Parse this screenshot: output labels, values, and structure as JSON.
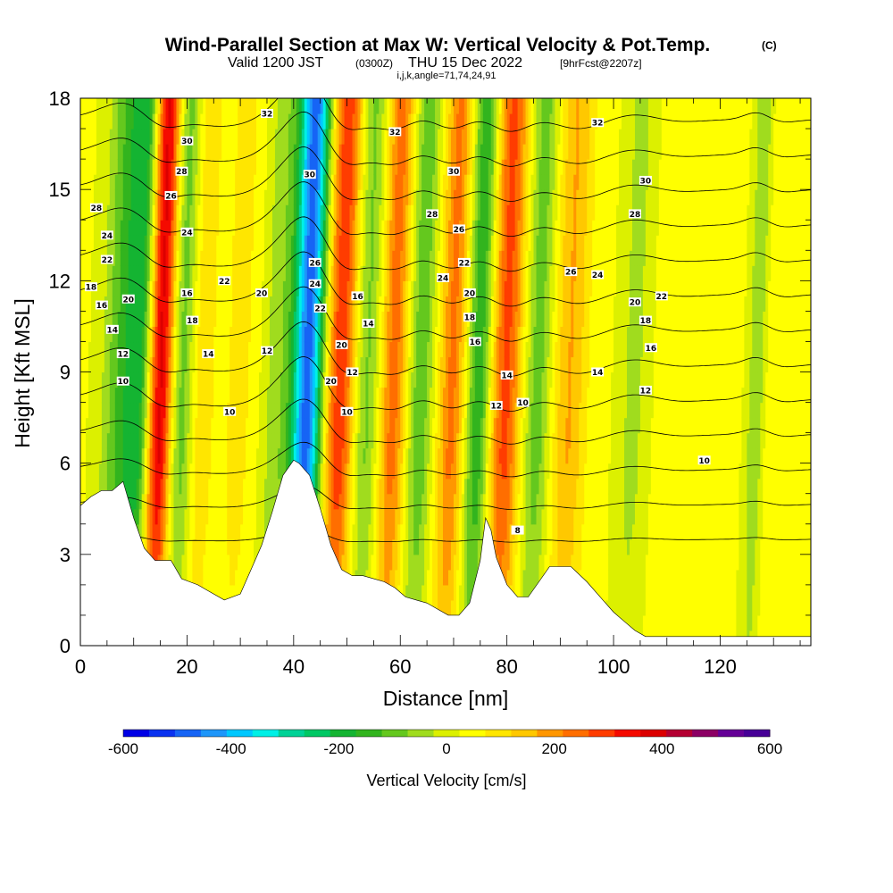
{
  "title": "Wind-Parallel Section at Max W: Vertical Velocity & Pot.Temp.",
  "title_mark": "(C)",
  "subtitle": {
    "valid": "Valid 1200 JST",
    "utc": "(0300Z)",
    "date": "THU 15 Dec 2022",
    "fcst": "[9hrFcst@2207z]"
  },
  "indices": "i,j,k,angle=71,74,24,91",
  "chart_data": {
    "type": "heatmap",
    "xlabel": "Distance [nm]",
    "ylabel": "Height [Kft MSL]",
    "xlim": [
      0,
      137
    ],
    "ylim": [
      0,
      18
    ],
    "xticks": [
      0,
      20,
      40,
      60,
      80,
      100,
      120
    ],
    "yticks": [
      0,
      3,
      6,
      9,
      12,
      15,
      18
    ],
    "grid": false,
    "colorbar": {
      "title": "Vertical Velocity [cm/s]",
      "min": -600,
      "max": 600,
      "ticks": [
        -600,
        -400,
        -200,
        0,
        200,
        400,
        600
      ],
      "colors": [
        "#0000e6",
        "#0a32f0",
        "#1664f5",
        "#1e96fa",
        "#00c8ff",
        "#00f0e6",
        "#00d296",
        "#00c864",
        "#14b432",
        "#32b41e",
        "#64c81e",
        "#a0dc1e",
        "#dcf000",
        "#ffff00",
        "#ffe600",
        "#ffc800",
        "#ff9600",
        "#ff6e00",
        "#ff3c00",
        "#f50a00",
        "#dc0000",
        "#b40032",
        "#8c0064",
        "#640096",
        "#460096"
      ]
    },
    "velocity_bands": [
      {
        "x": 8,
        "w": -150,
        "width": 3.5
      },
      {
        "x": 12,
        "w": -250,
        "width": 2.8
      },
      {
        "x": 15,
        "w": 420,
        "width": 2.8
      },
      {
        "x": 19,
        "w": -160,
        "width": 2.5
      },
      {
        "x": 23,
        "w": 80,
        "width": 2.5
      },
      {
        "x": 30,
        "w": 60,
        "width": 3.0
      },
      {
        "x": 37,
        "w": -80,
        "width": 2.5
      },
      {
        "x": 42,
        "w": -380,
        "width": 2.6
      },
      {
        "x": 44,
        "w": -220,
        "width": 2.2
      },
      {
        "x": 49,
        "w": 270,
        "width": 2.8
      },
      {
        "x": 54,
        "w": -120,
        "width": 2.5
      },
      {
        "x": 59,
        "w": 210,
        "width": 2.6
      },
      {
        "x": 64,
        "w": -140,
        "width": 2.5
      },
      {
        "x": 70,
        "w": 200,
        "width": 2.6
      },
      {
        "x": 75,
        "w": -200,
        "width": 2.4
      },
      {
        "x": 80,
        "w": 250,
        "width": 3.0
      },
      {
        "x": 86,
        "w": -130,
        "width": 2.6
      },
      {
        "x": 92,
        "w": 140,
        "width": 3.2
      },
      {
        "x": 104,
        "w": -70,
        "width": 2.6
      },
      {
        "x": 112,
        "w": 30,
        "width": 3.0
      },
      {
        "x": 127,
        "w": -100,
        "width": 1.5
      },
      {
        "x": 131,
        "w": 40,
        "width": 2.0
      }
    ],
    "isentrope_levels": [
      8,
      10,
      12,
      14,
      16,
      18,
      20,
      22,
      24,
      26,
      28,
      30,
      32
    ],
    "isentrope_labels": [
      {
        "text": "32",
        "x": 35,
        "y": 17.5
      },
      {
        "text": "32",
        "x": 59,
        "y": 16.9
      },
      {
        "text": "32",
        "x": 97,
        "y": 17.2
      },
      {
        "text": "30",
        "x": 20,
        "y": 16.6
      },
      {
        "text": "30",
        "x": 43,
        "y": 15.5
      },
      {
        "text": "30",
        "x": 70,
        "y": 15.6
      },
      {
        "text": "30",
        "x": 106,
        "y": 15.3
      },
      {
        "text": "28",
        "x": 19,
        "y": 15.6
      },
      {
        "text": "28",
        "x": 3,
        "y": 14.4
      },
      {
        "text": "28",
        "x": 66,
        "y": 14.2
      },
      {
        "text": "28",
        "x": 104,
        "y": 14.2
      },
      {
        "text": "26",
        "x": 17,
        "y": 14.8
      },
      {
        "text": "26",
        "x": 44,
        "y": 12.6
      },
      {
        "text": "26",
        "x": 71,
        "y": 13.7
      },
      {
        "text": "26",
        "x": 92,
        "y": 12.3
      },
      {
        "text": "24",
        "x": 5,
        "y": 13.5
      },
      {
        "text": "24",
        "x": 20,
        "y": 13.6
      },
      {
        "text": "24",
        "x": 44,
        "y": 11.9
      },
      {
        "text": "24",
        "x": 68,
        "y": 12.1
      },
      {
        "text": "24",
        "x": 97,
        "y": 12.2
      },
      {
        "text": "22",
        "x": 5,
        "y": 12.7
      },
      {
        "text": "22",
        "x": 27,
        "y": 12.0
      },
      {
        "text": "22",
        "x": 45,
        "y": 11.1
      },
      {
        "text": "22",
        "x": 72,
        "y": 12.6
      },
      {
        "text": "22",
        "x": 109,
        "y": 11.5
      },
      {
        "text": "20",
        "x": 9,
        "y": 11.4
      },
      {
        "text": "20",
        "x": 34,
        "y": 11.6
      },
      {
        "text": "20",
        "x": 49,
        "y": 9.9
      },
      {
        "text": "20",
        "x": 73,
        "y": 11.6
      },
      {
        "text": "20",
        "x": 104,
        "y": 11.3
      },
      {
        "text": "18",
        "x": 2,
        "y": 11.8
      },
      {
        "text": "18",
        "x": 21,
        "y": 10.7
      },
      {
        "text": "18",
        "x": 73,
        "y": 10.8
      },
      {
        "text": "18",
        "x": 106,
        "y": 10.7
      },
      {
        "text": "16",
        "x": 4,
        "y": 11.2
      },
      {
        "text": "16",
        "x": 20,
        "y": 11.6
      },
      {
        "text": "16",
        "x": 52,
        "y": 11.5
      },
      {
        "text": "16",
        "x": 74,
        "y": 10.0
      },
      {
        "text": "16",
        "x": 107,
        "y": 9.8
      },
      {
        "text": "14",
        "x": 6,
        "y": 10.4
      },
      {
        "text": "14",
        "x": 24,
        "y": 9.6
      },
      {
        "text": "14",
        "x": 54,
        "y": 10.6
      },
      {
        "text": "14",
        "x": 80,
        "y": 8.9
      },
      {
        "text": "14",
        "x": 97,
        "y": 9.0
      },
      {
        "text": "12",
        "x": 8,
        "y": 9.6
      },
      {
        "text": "12",
        "x": 35,
        "y": 9.7
      },
      {
        "text": "12",
        "x": 51,
        "y": 9.0
      },
      {
        "text": "12",
        "x": 78,
        "y": 7.9
      },
      {
        "text": "12",
        "x": 106,
        "y": 8.4
      },
      {
        "text": "10",
        "x": 8,
        "y": 8.7
      },
      {
        "text": "10",
        "x": 28,
        "y": 7.7
      },
      {
        "text": "10",
        "x": 50,
        "y": 7.7
      },
      {
        "text": "10",
        "x": 83,
        "y": 8.0
      },
      {
        "text": "10",
        "x": 117,
        "y": 6.1
      },
      {
        "text": "8",
        "x": 82,
        "y": 3.8
      },
      {
        "text": "20",
        "x": 47,
        "y": 8.7
      }
    ],
    "terrain": [
      [
        0,
        4.6
      ],
      [
        2,
        4.9
      ],
      [
        4,
        5.1
      ],
      [
        6,
        5.1
      ],
      [
        8,
        5.4
      ],
      [
        10,
        4.2
      ],
      [
        12,
        3.2
      ],
      [
        14,
        2.8
      ],
      [
        17,
        2.8
      ],
      [
        19,
        2.2
      ],
      [
        22,
        2.0
      ],
      [
        24,
        1.8
      ],
      [
        27,
        1.5
      ],
      [
        30,
        1.7
      ],
      [
        32,
        2.5
      ],
      [
        34,
        3.3
      ],
      [
        36,
        4.4
      ],
      [
        38,
        5.6
      ],
      [
        40,
        6.1
      ],
      [
        41,
        6.0
      ],
      [
        43,
        5.6
      ],
      [
        45,
        4.5
      ],
      [
        47,
        3.3
      ],
      [
        49,
        2.5
      ],
      [
        51,
        2.3
      ],
      [
        53,
        2.3
      ],
      [
        55,
        2.2
      ],
      [
        57,
        2.1
      ],
      [
        59,
        1.9
      ],
      [
        61,
        1.6
      ],
      [
        63,
        1.5
      ],
      [
        65,
        1.4
      ],
      [
        67,
        1.2
      ],
      [
        69,
        1.0
      ],
      [
        71,
        1.0
      ],
      [
        73,
        1.4
      ],
      [
        75,
        2.8
      ],
      [
        76,
        4.2
      ],
      [
        77,
        3.8
      ],
      [
        78,
        2.9
      ],
      [
        80,
        2.0
      ],
      [
        82,
        1.6
      ],
      [
        84,
        1.6
      ],
      [
        86,
        2.1
      ],
      [
        88,
        2.6
      ],
      [
        92,
        2.6
      ],
      [
        95,
        2.1
      ],
      [
        98,
        1.5
      ],
      [
        100,
        1.1
      ],
      [
        102,
        0.8
      ],
      [
        104,
        0.5
      ],
      [
        106,
        0.3
      ],
      [
        137,
        0.3
      ]
    ]
  }
}
